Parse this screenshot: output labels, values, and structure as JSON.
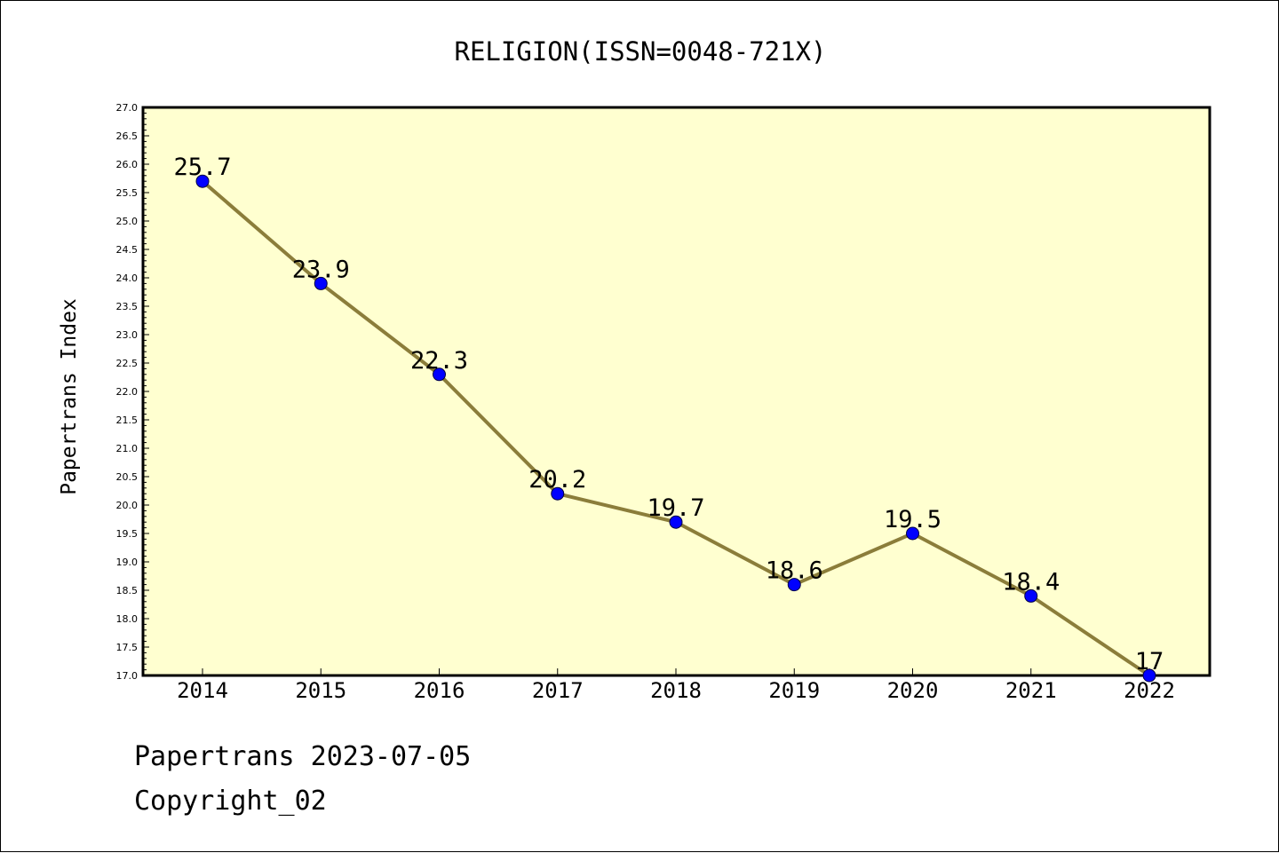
{
  "colors": {
    "plot_background": "#ffffd0",
    "line": "#8b7d3a",
    "marker": "#0000ff"
  },
  "footer": {
    "date_line": "Papertrans 2023-07-05",
    "copyright_line": "Copyright_02"
  },
  "chart_data": {
    "type": "line",
    "title": "RELIGION(ISSN=0048-721X)",
    "xlabel": "",
    "ylabel": "Papertrans Index",
    "categories": [
      "2014",
      "2015",
      "2016",
      "2017",
      "2018",
      "2019",
      "2020",
      "2021",
      "2022"
    ],
    "series": [
      {
        "values": [
          25.7,
          23.9,
          22.3,
          20.2,
          19.7,
          18.6,
          19.5,
          18.4,
          17.0
        ],
        "labels": [
          "25.7",
          "23.9",
          "22.3",
          "20.2",
          "19.7",
          "18.6",
          "19.5",
          "18.4",
          "17"
        ]
      }
    ],
    "ylim": [
      17.0,
      27.0
    ],
    "ytick_step": 0.5,
    "yminor_step": 0.1,
    "grid": false,
    "legend": "none"
  }
}
